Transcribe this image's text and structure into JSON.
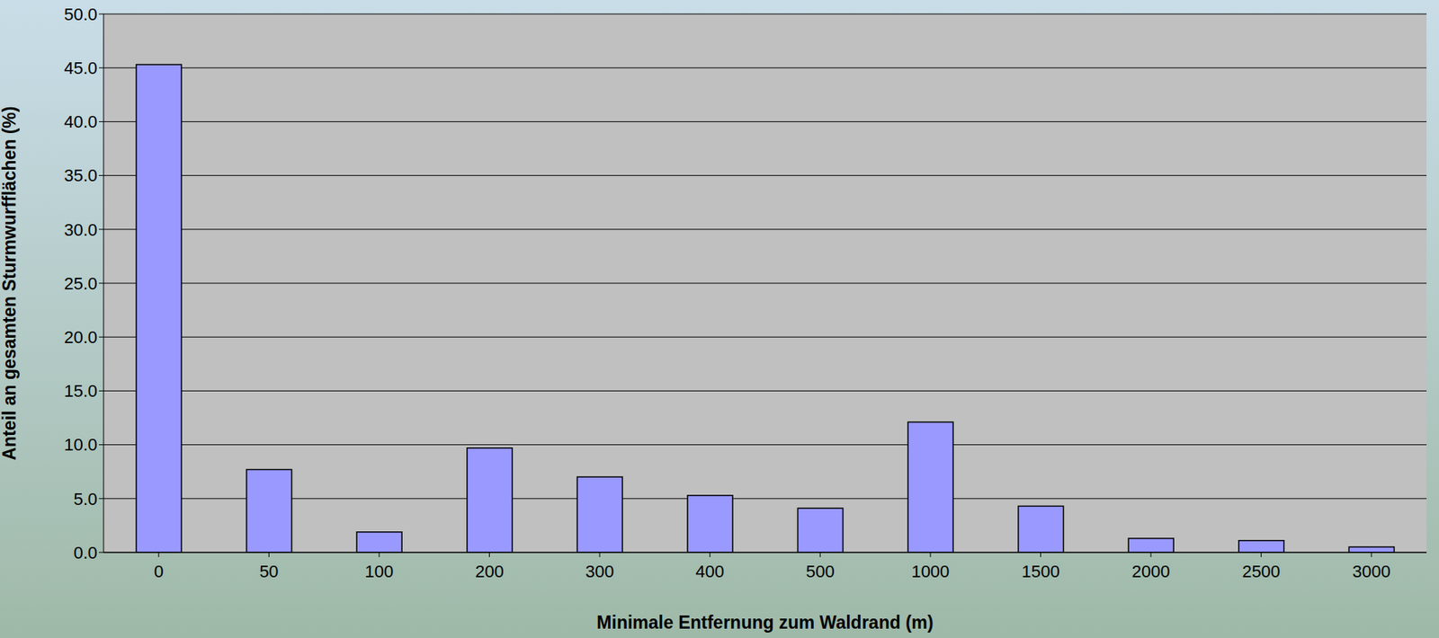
{
  "chart_data": {
    "type": "bar",
    "categories": [
      "0",
      "50",
      "100",
      "200",
      "300",
      "400",
      "500",
      "1000",
      "1500",
      "2000",
      "2500",
      "3000"
    ],
    "values": [
      45.3,
      7.7,
      1.9,
      9.7,
      7.0,
      5.3,
      4.1,
      12.1,
      4.3,
      1.3,
      1.1,
      0.5
    ],
    "color": "#9999ff",
    "x_label": "Minimale Entfernung zum Waldrand (m)",
    "y_label": "Anteil an gesamten Sturmwurfflächen (%)",
    "ylim": [
      0,
      50
    ],
    "yticks": [
      {
        "value": 0,
        "label": "0.0"
      },
      {
        "value": 5,
        "label": "5.0"
      },
      {
        "value": 10,
        "label": "10.0"
      },
      {
        "value": 15,
        "label": "15.0"
      },
      {
        "value": 20,
        "label": "20.0"
      },
      {
        "value": 25,
        "label": "25.0"
      },
      {
        "value": 30,
        "label": "30.0"
      },
      {
        "value": 35,
        "label": "35.0"
      },
      {
        "value": 40,
        "label": "40.0"
      },
      {
        "value": 45,
        "label": "45.0"
      },
      {
        "value": 50,
        "label": "50.0"
      }
    ],
    "grid": true
  }
}
